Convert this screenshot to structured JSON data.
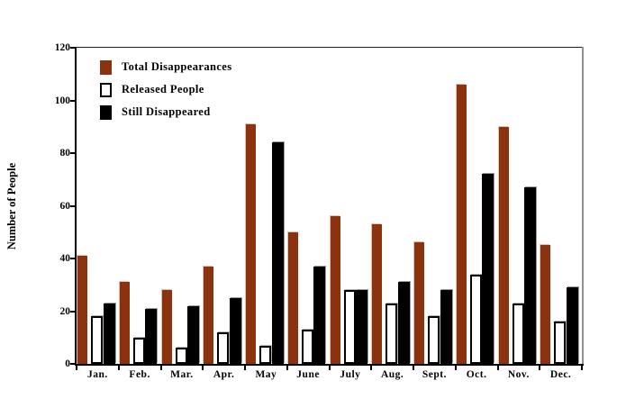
{
  "chart_data": {
    "type": "bar",
    "title": "",
    "xlabel": "",
    "ylabel": "Number of People",
    "ylim": [
      0,
      120
    ],
    "yticks": [
      0,
      20,
      40,
      60,
      80,
      100,
      120
    ],
    "grid": false,
    "legend_position": "top-left-inside",
    "categories": [
      "Jan.",
      "Feb.",
      "Mar.",
      "Apr.",
      "May",
      "June",
      "July",
      "Aug.",
      "Sept.",
      "Oct.",
      "Nov.",
      "Dec."
    ],
    "series": [
      {
        "name": "Total Disappearances",
        "color": "#8A330E",
        "values": [
          41,
          31,
          28,
          37,
          91,
          50,
          56,
          53,
          46,
          106,
          90,
          45
        ]
      },
      {
        "name": "Released People",
        "color": "#FFFFFF",
        "border_color": "#000000",
        "values": [
          18,
          10,
          6,
          12,
          7,
          13,
          28,
          23,
          18,
          34,
          23,
          16
        ]
      },
      {
        "name": "Still Disappeared",
        "color": "#000000",
        "values": [
          23,
          21,
          22,
          25,
          84,
          37,
          28,
          31,
          28,
          72,
          67,
          29
        ]
      }
    ]
  }
}
